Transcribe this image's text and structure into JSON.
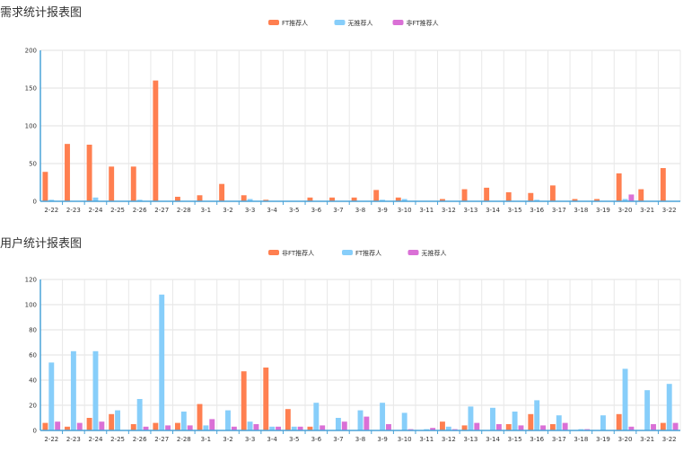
{
  "colors": {
    "orange": "#FF7F50",
    "blue": "#87CEFA",
    "purple": "#DA70D6"
  },
  "chart_data": [
    {
      "type": "bar",
      "title": "需求统计报表图",
      "legend_position": "top-center",
      "grid": true,
      "ylim": [
        0,
        200
      ],
      "yticks": [
        0,
        50,
        100,
        150,
        200
      ],
      "categories": [
        "2-22",
        "2-23",
        "2-24",
        "2-25",
        "2-26",
        "2-27",
        "2-28",
        "3-1",
        "3-2",
        "3-3",
        "3-4",
        "3-5",
        "3-6",
        "3-7",
        "3-8",
        "3-9",
        "3-10",
        "3-11",
        "3-12",
        "3-13",
        "3-14",
        "3-15",
        "3-16",
        "3-17",
        "3-18",
        "3-19",
        "3-20",
        "3-21",
        "3-22"
      ],
      "series": [
        {
          "name": "FT推荐人",
          "color": "#FF7F50",
          "values": [
            39,
            76,
            75,
            46,
            46,
            160,
            6,
            8,
            23,
            8,
            2,
            0,
            5,
            5,
            5,
            15,
            5,
            0,
            3,
            16,
            18,
            12,
            11,
            21,
            3,
            3,
            37,
            16,
            44
          ]
        },
        {
          "name": "无推荐人",
          "color": "#87CEFA",
          "values": [
            2,
            0,
            5,
            0,
            2,
            0,
            0,
            0,
            0,
            3,
            0,
            0,
            0,
            0,
            0,
            2,
            3,
            0,
            0,
            0,
            0,
            0,
            2,
            0,
            0,
            0,
            3,
            0,
            0
          ]
        },
        {
          "name": "非FT推荐人",
          "color": "#DA70D6",
          "values": [
            0,
            0,
            0,
            0,
            0,
            0,
            0,
            0,
            0,
            0,
            0,
            0,
            0,
            0,
            0,
            0,
            0,
            0,
            0,
            0,
            0,
            0,
            0,
            0,
            0,
            0,
            9,
            0,
            0
          ]
        }
      ]
    },
    {
      "type": "bar",
      "title": "用户统计报表图",
      "legend_position": "top-center",
      "grid": true,
      "ylim": [
        0,
        120
      ],
      "yticks": [
        0,
        20,
        40,
        60,
        80,
        100,
        120
      ],
      "categories": [
        "2-22",
        "2-23",
        "2-24",
        "2-25",
        "2-26",
        "2-27",
        "2-28",
        "3-1",
        "3-2",
        "3-3",
        "3-4",
        "3-5",
        "3-6",
        "3-7",
        "3-8",
        "3-9",
        "3-10",
        "3-11",
        "3-12",
        "3-13",
        "3-14",
        "3-15",
        "3-16",
        "3-17",
        "3-18",
        "3-19",
        "3-20",
        "3-21",
        "3-22"
      ],
      "series": [
        {
          "name": "非FT推荐人",
          "color": "#FF7F50",
          "values": [
            6,
            3,
            10,
            13,
            5,
            6,
            6,
            21,
            0,
            47,
            50,
            17,
            3,
            0,
            0,
            0,
            0,
            0,
            7,
            4,
            0,
            5,
            13,
            5,
            0,
            0,
            13,
            0,
            6
          ]
        },
        {
          "name": "FT推荐人",
          "color": "#87CEFA",
          "values": [
            54,
            63,
            63,
            16,
            25,
            108,
            15,
            4,
            16,
            7,
            3,
            3,
            22,
            10,
            16,
            22,
            14,
            1,
            3,
            19,
            18,
            15,
            24,
            12,
            1,
            12,
            49,
            32,
            37
          ]
        },
        {
          "name": "无推荐人",
          "color": "#DA70D6",
          "values": [
            7,
            6,
            7,
            0,
            3,
            4,
            4,
            9,
            3,
            5,
            3,
            3,
            4,
            7,
            11,
            5,
            1,
            2,
            1,
            6,
            5,
            4,
            4,
            6,
            1,
            0,
            3,
            5,
            6
          ]
        }
      ]
    }
  ]
}
